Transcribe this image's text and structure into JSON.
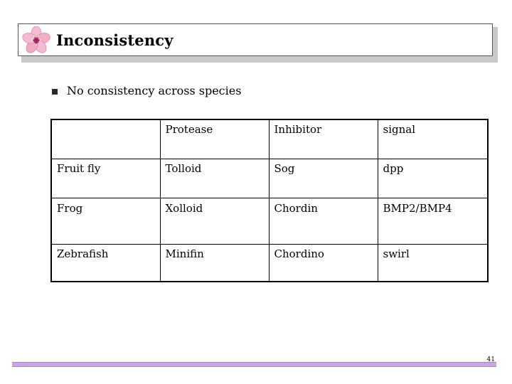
{
  "slide": {
    "title": "Inconsistency",
    "bullet": "No consistency across species",
    "page_number": "41"
  },
  "table": {
    "rows": [
      [
        "",
        "Protease",
        "Inhibitor",
        "signal"
      ],
      [
        "Fruit fly",
        "Tolloid",
        "Sog",
        "dpp"
      ],
      [
        "Frog",
        "Xolloid",
        "Chordin",
        "BMP2/BMP4"
      ],
      [
        "Zebrafish",
        "Minifin",
        "Chordino",
        "swirl"
      ]
    ]
  },
  "colors": {
    "footer_bar": "#c9a6e6",
    "flower_petal": "#f3b9cf",
    "flower_center": "#b0306a",
    "title_shadow": "#c9c9c9"
  },
  "icons": {
    "title_logo": "flower-icon",
    "bullet": "square-bullet-icon"
  }
}
